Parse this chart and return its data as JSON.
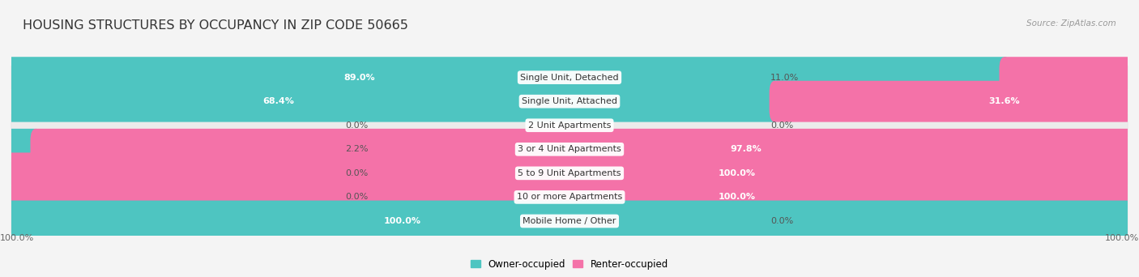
{
  "title": "HOUSING STRUCTURES BY OCCUPANCY IN ZIP CODE 50665",
  "source": "Source: ZipAtlas.com",
  "categories": [
    "Single Unit, Detached",
    "Single Unit, Attached",
    "2 Unit Apartments",
    "3 or 4 Unit Apartments",
    "5 to 9 Unit Apartments",
    "10 or more Apartments",
    "Mobile Home / Other"
  ],
  "owner_pct": [
    89.0,
    68.4,
    0.0,
    2.2,
    0.0,
    0.0,
    100.0
  ],
  "renter_pct": [
    11.0,
    31.6,
    0.0,
    97.8,
    100.0,
    100.0,
    0.0
  ],
  "owner_color": "#4EC5C1",
  "renter_color": "#F472A8",
  "owner_color_light": "#A8DEDD",
  "renter_color_light": "#F9B8D3",
  "bg_color": "#F4F4F4",
  "row_bg_even": "#EBEBEB",
  "row_bg_odd": "#F8F8F8",
  "title_fontsize": 11.5,
  "label_fontsize": 8,
  "value_fontsize": 8,
  "legend_fontsize": 8.5,
  "source_fontsize": 7.5
}
